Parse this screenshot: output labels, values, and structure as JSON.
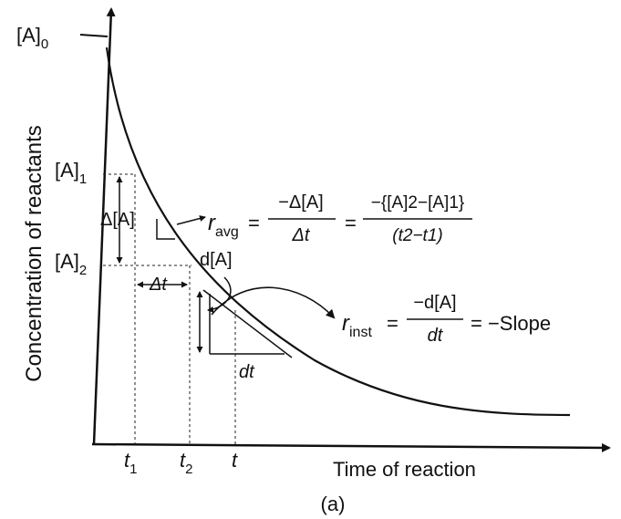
{
  "axes": {
    "y_label": "Concentration of reactants",
    "x_label": "Time of reaction"
  },
  "caption": "(a)",
  "concentration_labels": {
    "a0_main": "[A]",
    "a0_sub": "0",
    "a1_main": "[A]",
    "a1_sub": "1",
    "a2_main": "[A]",
    "a2_sub": "2"
  },
  "time_labels": {
    "t1_main": "t",
    "t1_sub": "1",
    "t2_main": "t",
    "t2_sub": "2",
    "t": "t"
  },
  "intervals": {
    "delta_a": "Δ[A]",
    "delta_t": "Δt",
    "d_a": "d[A]",
    "d_t": "dt"
  },
  "r_avg": {
    "symbol": "r",
    "sub": "avg",
    "equals": "=",
    "frac1_num": "−Δ[A]",
    "frac1_den": "Δt",
    "equals2": "=",
    "frac2_num": "−{[A]2−[A]1}",
    "frac2_den": "(t2−t1)"
  },
  "r_inst": {
    "symbol": "r",
    "sub": "inst",
    "equals": "=",
    "frac_num": "−d[A]",
    "frac_den": "dt",
    "tail": "= −Slope"
  }
}
